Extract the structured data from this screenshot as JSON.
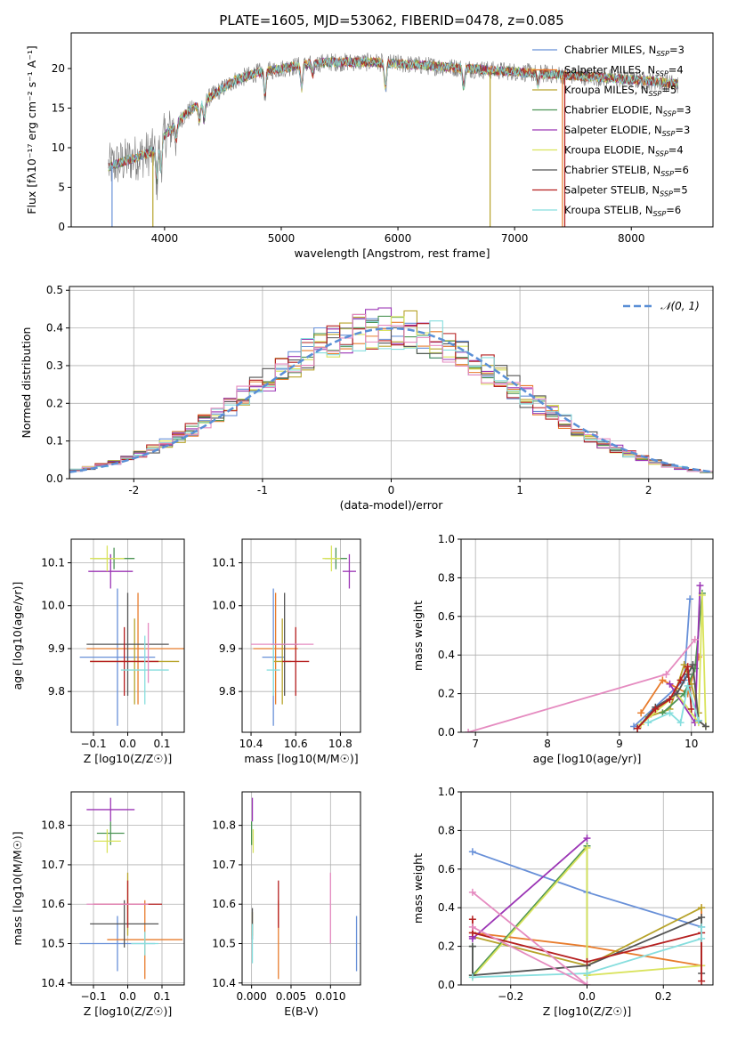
{
  "figure_title": "PLATE=1605, MJD=53062, FIBERID=0478, z=0.085",
  "series_colors": [
    "#6890d8",
    "#e87c2c",
    "#b7a32a",
    "#4d9454",
    "#9b35b5",
    "#d9e35c",
    "#555555",
    "#b51f1f",
    "#86dede"
  ],
  "chart_data": [
    {
      "panel": "spectrum",
      "type": "line",
      "xlabel": "wavelength [Angstrom, rest frame]",
      "ylabel": "Flux [fλ10⁻¹⁷ erg cm⁻² s⁻¹ A⁻¹]",
      "xlim": [
        3200,
        8700
      ],
      "ylim": [
        0,
        24.5
      ],
      "xticks": [
        4000,
        5000,
        6000,
        7000,
        8000
      ],
      "yticks": [
        0,
        5,
        10,
        15,
        20
      ],
      "grid": false,
      "legend_position": "top-right",
      "continuum": {
        "x": [
          3500,
          3700,
          3900,
          4000,
          4200,
          4400,
          4600,
          4800,
          5000,
          5200,
          5400,
          5600,
          5800,
          6000,
          6200,
          6400,
          6600,
          6800,
          7000,
          7200,
          7400,
          7600,
          7800,
          8000,
          8200,
          8400
        ],
        "y": [
          7.5,
          8.5,
          9.5,
          11.5,
          14.5,
          16.5,
          18.5,
          19.5,
          20.0,
          20.5,
          20.8,
          20.8,
          20.8,
          20.6,
          20.4,
          20.2,
          20.0,
          19.8,
          19.6,
          19.4,
          19.2,
          19.0,
          18.8,
          18.6,
          18.4,
          18.0
        ]
      },
      "series": [
        {
          "name": "Chabrier MILES, N_SSP=3",
          "label_main": "Chabrier MILES, N",
          "label_sub": "SSP",
          "label_tail": "=3"
        },
        {
          "name": "Salpeter MILES, N_SSP=4",
          "label_main": "Salpeter MILES, N",
          "label_sub": "SSP",
          "label_tail": "=4"
        },
        {
          "name": "Kroupa MILES, N_SSP=5",
          "label_main": "Kroupa MILES, N",
          "label_sub": "SSP",
          "label_tail": "=5"
        },
        {
          "name": "Chabrier ELODIE, N_SSP=3",
          "label_main": "Chabrier ELODIE, N",
          "label_sub": "SSP",
          "label_tail": "=3"
        },
        {
          "name": "Salpeter ELODIE, N_SSP=3",
          "label_main": "Salpeter ELODIE, N",
          "label_sub": "SSP",
          "label_tail": "=3"
        },
        {
          "name": "Kroupa ELODIE, N_SSP=4",
          "label_main": "Kroupa ELODIE, N",
          "label_sub": "SSP",
          "label_tail": "=4"
        },
        {
          "name": "Chabrier STELIB, N_SSP=6",
          "label_main": "Chabrier STELIB, N",
          "label_sub": "SSP",
          "label_tail": "=6"
        },
        {
          "name": "Salpeter STELIB, N_SSP=5",
          "label_main": "Salpeter STELIB, N",
          "label_sub": "SSP",
          "label_tail": "=5"
        },
        {
          "name": "Kroupa STELIB, N_SSP=6",
          "label_main": "Kroupa STELIB, N",
          "label_sub": "SSP",
          "label_tail": "=6"
        }
      ]
    },
    {
      "panel": "residuals",
      "type": "histogram",
      "xlabel": "(data-model)/error",
      "ylabel": "Normed distribution",
      "xlim": [
        -2.5,
        2.5
      ],
      "ylim": [
        0,
        0.51
      ],
      "xticks": [
        -2,
        -1,
        0,
        1,
        2
      ],
      "yticks": [
        0.0,
        0.1,
        0.2,
        0.3,
        0.4,
        0.5
      ],
      "grid": true,
      "bin_width": 0.1,
      "reference_curve": "normal(0,1)",
      "reference_legend": "𝒩(0, 1)",
      "legend_position": "top-right"
    },
    {
      "panel": "age-vs-Z",
      "type": "errorbar",
      "xlabel": "Z [log10(Z/Z☉)]",
      "ylabel": "age  [log10(age/yr)]",
      "xlim": [
        -0.165,
        0.165
      ],
      "ylim": [
        9.705,
        10.155
      ],
      "xticks": [
        -0.1,
        0.0,
        0.1
      ],
      "xticklabels": [
        "−0.1",
        "0.0",
        "0.1"
      ],
      "yticks": [
        9.8,
        9.9,
        10.0,
        10.1
      ],
      "grid": true,
      "points": [
        {
          "x": -0.03,
          "y": 9.88,
          "xerr": 0.11,
          "yerr": 0.16
        },
        {
          "x": 0.03,
          "y": 9.9,
          "xerr": 0.15,
          "yerr": 0.13
        },
        {
          "x": 0.02,
          "y": 9.87,
          "xerr": 0.13,
          "yerr": 0.1
        },
        {
          "x": -0.04,
          "y": 10.11,
          "xerr": 0.06,
          "yerr": 0.025
        },
        {
          "x": -0.05,
          "y": 10.08,
          "xerr": 0.065,
          "yerr": 0.04
        },
        {
          "x": -0.06,
          "y": 10.11,
          "xerr": 0.05,
          "yerr": 0.03
        },
        {
          "x": 0.0,
          "y": 9.91,
          "xerr": 0.12,
          "yerr": 0.12
        },
        {
          "x": -0.01,
          "y": 9.87,
          "xerr": 0.1,
          "yerr": 0.08
        },
        {
          "x": 0.05,
          "y": 9.85,
          "xerr": 0.07,
          "yerr": 0.08
        }
      ],
      "extra_points": [
        {
          "x": 0.06,
          "y": 9.89,
          "xerr": 0.0,
          "yerr": 0.07
        }
      ]
    },
    {
      "panel": "age-vs-mass",
      "type": "errorbar",
      "xlabel": "mass [log10(M/M☉)]",
      "xlim": [
        10.36,
        10.89
      ],
      "ylim": [
        9.705,
        10.155
      ],
      "xticks": [
        10.4,
        10.6,
        10.8
      ],
      "yticks": [
        9.8,
        9.9,
        10.0,
        10.1
      ],
      "grid": true,
      "points": [
        {
          "x": 10.5,
          "y": 9.88,
          "xerr": 0.05,
          "yerr": 0.16
        },
        {
          "x": 10.51,
          "y": 9.9,
          "xerr": 0.1,
          "yerr": 0.13
        },
        {
          "x": 10.54,
          "y": 9.87,
          "xerr": 0.04,
          "yerr": 0.1
        },
        {
          "x": 10.78,
          "y": 10.11,
          "xerr": 0.05,
          "yerr": 0.025
        },
        {
          "x": 10.84,
          "y": 10.08,
          "xerr": 0.03,
          "yerr": 0.04
        },
        {
          "x": 10.76,
          "y": 10.11,
          "xerr": 0.04,
          "yerr": 0.03
        },
        {
          "x": 10.55,
          "y": 9.91,
          "xerr": 0.06,
          "yerr": 0.12
        },
        {
          "x": 10.6,
          "y": 9.87,
          "xerr": 0.06,
          "yerr": 0.08
        },
        {
          "x": 10.5,
          "y": 9.85,
          "xerr": 0.03,
          "yerr": 0.06
        }
      ],
      "extra_points": [
        {
          "x": 10.54,
          "y": 9.91,
          "xerr": 0.14,
          "yerr": 0.0
        }
      ]
    },
    {
      "panel": "weight-vs-age",
      "type": "line",
      "xlabel": "age  [log10(age/yr)]",
      "ylabel": "mass weight",
      "xlim": [
        6.8,
        10.3
      ],
      "ylim": [
        0,
        1.0
      ],
      "xticks": [
        7,
        8,
        9,
        10
      ],
      "yticks": [
        0.0,
        0.2,
        0.4,
        0.6,
        0.8,
        1.0
      ],
      "grid": true,
      "series": [
        {
          "color_index": 0,
          "x": [
            9.2,
            9.9,
            9.98
          ],
          "y": [
            0.03,
            0.27,
            0.69
          ]
        },
        {
          "color_index": 1,
          "x": [
            9.3,
            9.6,
            9.95,
            10.1
          ],
          "y": [
            0.1,
            0.27,
            0.2,
            0.39
          ]
        },
        {
          "color_index": 2,
          "x": [
            9.4,
            9.7,
            9.9,
            10.0,
            10.1
          ],
          "y": [
            0.08,
            0.12,
            0.35,
            0.25,
            0.1
          ]
        },
        {
          "color_index": 3,
          "x": [
            9.6,
            9.9,
            10.05,
            10.15
          ],
          "y": [
            0.1,
            0.2,
            0.33,
            0.72
          ]
        },
        {
          "color_index": 4,
          "x": [
            9.7,
            10.05,
            10.12
          ],
          "y": [
            0.25,
            0.05,
            0.76
          ]
        },
        {
          "color_index": 5,
          "x": [
            9.3,
            9.8,
            10.1,
            10.15,
            10.2
          ],
          "y": [
            0.04,
            0.2,
            0.05,
            0.71,
            0.03
          ]
        },
        {
          "color_index": 6,
          "x": [
            9.25,
            9.5,
            9.8,
            9.95,
            10.02,
            10.1,
            10.2
          ],
          "y": [
            0.02,
            0.13,
            0.2,
            0.3,
            0.35,
            0.06,
            0.03
          ]
        },
        {
          "color_index": 7,
          "x": [
            9.25,
            9.5,
            9.7,
            9.85,
            9.95,
            10.0
          ],
          "y": [
            0.02,
            0.12,
            0.17,
            0.27,
            0.34,
            0.12
          ]
        },
        {
          "color_index": 8,
          "x": [
            9.4,
            9.7,
            9.85,
            9.95,
            10.1
          ],
          "y": [
            0.05,
            0.1,
            0.05,
            0.24,
            0.06
          ]
        },
        {
          "color_index": 9,
          "x": [
            6.9,
            9.65,
            10.05
          ],
          "y": [
            0.0,
            0.3,
            0.48
          ]
        }
      ]
    },
    {
      "panel": "mass-vs-Z",
      "type": "errorbar",
      "xlabel": "Z [log10(Z/Z☉)]",
      "ylabel": "mass [log10(M/M☉)]",
      "xlim": [
        -0.165,
        0.165
      ],
      "ylim": [
        10.395,
        10.885
      ],
      "xticks": [
        -0.1,
        0.0,
        0.1
      ],
      "xticklabels": [
        "−0.1",
        "0.0",
        "0.1"
      ],
      "yticks": [
        10.4,
        10.5,
        10.6,
        10.7,
        10.8
      ],
      "grid": true,
      "points": [
        {
          "x": -0.03,
          "y": 10.5,
          "xerr": 0.11,
          "yerr": 0.07
        },
        {
          "x": 0.05,
          "y": 10.51,
          "xerr": 0.11,
          "yerr": 0.1
        },
        {
          "x": 0.0,
          "y": 10.6,
          "xerr": 0.0,
          "yerr": 0.08
        },
        {
          "x": -0.05,
          "y": 10.78,
          "xerr": 0.04,
          "yerr": 0.03
        },
        {
          "x": -0.05,
          "y": 10.84,
          "xerr": 0.07,
          "yerr": 0.03
        },
        {
          "x": -0.06,
          "y": 10.76,
          "xerr": 0.04,
          "yerr": 0.03
        },
        {
          "x": -0.01,
          "y": 10.55,
          "xerr": 0.1,
          "yerr": 0.06
        },
        {
          "x": 0.0,
          "y": 10.6,
          "xerr": 0.1,
          "yerr": 0.06
        },
        {
          "x": 0.05,
          "y": 10.5,
          "xerr": 0.04,
          "yerr": 0.03
        }
      ],
      "extra_points": [
        {
          "x": -0.03,
          "y": 10.6,
          "xerr": 0.09,
          "yerr": 0.0
        }
      ]
    },
    {
      "panel": "mass-vs-EBV",
      "type": "errorbar",
      "xlabel": "E(B-V)",
      "xlim": [
        -0.0012,
        0.0138
      ],
      "ylim": [
        10.395,
        10.885
      ],
      "xticks": [
        0.0,
        0.005,
        0.01
      ],
      "xticklabels": [
        "0.000",
        "0.005",
        "0.010"
      ],
      "yticks": [
        10.4,
        10.5,
        10.6,
        10.7,
        10.8
      ],
      "grid": true,
      "points": [
        {
          "x": 0.0133,
          "y": 10.5,
          "xerr": 0.0,
          "yerr": 0.07
        },
        {
          "x": 0.0034,
          "y": 10.51,
          "xerr": 0.0,
          "yerr": 0.1
        },
        {
          "x": 0.0001,
          "y": 10.55,
          "xerr": 0.0,
          "yerr": 0.03
        },
        {
          "x": 0.0,
          "y": 10.78,
          "xerr": 0.0,
          "yerr": 0.03
        },
        {
          "x": 0.0001,
          "y": 10.84,
          "xerr": 0.0,
          "yerr": 0.03
        },
        {
          "x": 0.0002,
          "y": 10.76,
          "xerr": 0.0,
          "yerr": 0.03
        },
        {
          "x": 0.0001,
          "y": 10.55,
          "xerr": 0.0,
          "yerr": 0.04
        },
        {
          "x": 0.0034,
          "y": 10.6,
          "xerr": 0.0,
          "yerr": 0.06
        },
        {
          "x": 0.0001,
          "y": 10.5,
          "xerr": 0.0,
          "yerr": 0.05
        }
      ],
      "extra_points": [
        {
          "x": 0.01,
          "y": 10.59,
          "xerr": 0.0,
          "yerr": 0.09
        }
      ]
    },
    {
      "panel": "weight-vs-Z",
      "type": "line",
      "xlabel": "Z [log10(Z/Z☉)]",
      "ylabel": "mass weight",
      "xlim": [
        -0.33,
        0.33
      ],
      "ylim": [
        0,
        1.0
      ],
      "xticks": [
        -0.2,
        0.0,
        0.2
      ],
      "xticklabels": [
        "−0.2",
        "0.0",
        "0.2"
      ],
      "yticks": [
        0.0,
        0.2,
        0.4,
        0.6,
        0.8,
        1.0
      ],
      "grid": true,
      "series": [
        {
          "color_index": 0,
          "x": [
            -0.3,
            0.0,
            0.3
          ],
          "y": [
            0.69,
            0.48,
            0.3
          ]
        },
        {
          "color_index": 1,
          "x": [
            -0.3,
            0.0,
            0.3,
            0.3
          ],
          "y": [
            0.27,
            0.2,
            0.1,
            0.4
          ]
        },
        {
          "color_index": 2,
          "x": [
            -0.3,
            0.0,
            0.3
          ],
          "y": [
            0.25,
            0.1,
            0.4
          ]
        },
        {
          "color_index": 3,
          "x": [
            -0.3,
            -0.3,
            0.0,
            0.0
          ],
          "y": [
            0.2,
            0.05,
            0.72,
            0.05
          ]
        },
        {
          "color_index": 4,
          "x": [
            -0.3,
            -0.3,
            0.0
          ],
          "y": [
            0.25,
            0.24,
            0.76
          ]
        },
        {
          "color_index": 5,
          "x": [
            -0.3,
            0.0,
            0.0,
            0.3
          ],
          "y": [
            0.04,
            0.71,
            0.05,
            0.1
          ]
        },
        {
          "color_index": 6,
          "x": [
            -0.3,
            -0.3,
            0.0,
            0.3,
            0.3
          ],
          "y": [
            0.2,
            0.05,
            0.1,
            0.35,
            0.06
          ]
        },
        {
          "color_index": 7,
          "x": [
            -0.3,
            -0.3,
            0.0,
            0.3,
            0.3
          ],
          "y": [
            0.34,
            0.27,
            0.12,
            0.27,
            0.02
          ]
        },
        {
          "color_index": 8,
          "x": [
            -0.3,
            0.0,
            0.3,
            0.3
          ],
          "y": [
            0.04,
            0.06,
            0.24,
            0.3
          ]
        },
        {
          "color_index": 9,
          "x": [
            -0.3,
            0.0,
            -0.3
          ],
          "y": [
            0.48,
            0.0,
            0.3
          ]
        }
      ]
    }
  ]
}
